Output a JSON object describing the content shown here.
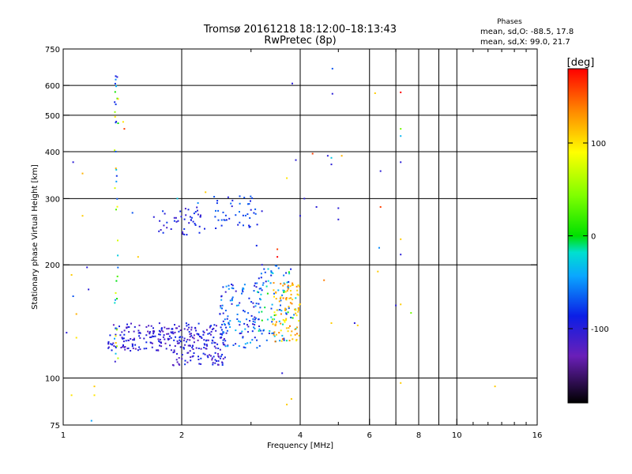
{
  "chart_data": {
    "type": "scatter",
    "title": "Tromsø 20161218 18:12:00–18:13:43",
    "subtitle": "RwPretec (8p)",
    "info": {
      "heading": "Phases",
      "line1": "mean, sd,O: -88.5, 17.8",
      "line2": "mean, sd,X:  99.0, 21.7"
    },
    "xlabel": "Frequency [MHz]",
    "ylabel": "Stationary phase Virtual Height [km]",
    "x_scale": "log",
    "y_scale": "log",
    "xlim": [
      1,
      16
    ],
    "ylim": [
      75,
      750
    ],
    "x_ticks": [
      1,
      2,
      4,
      6,
      8,
      10,
      16
    ],
    "x_tick_labels": [
      "1",
      "2",
      "4",
      "6",
      "8",
      "10",
      "16"
    ],
    "y_ticks": [
      75,
      100,
      200,
      300,
      400,
      500,
      600,
      750
    ],
    "y_tick_labels": [
      "75",
      "100",
      "200",
      "300",
      "400",
      "500",
      "600",
      "750"
    ],
    "grid": true,
    "colorbar": {
      "label": "[deg]",
      "range": [
        -180,
        180
      ],
      "ticks": [
        100,
        0,
        -100
      ],
      "tick_labels": [
        "100",
        "0",
        "-100"
      ]
    },
    "clusters": [
      {
        "x_range": [
          1.3,
          1.9
        ],
        "y_range": [
          118,
          140
        ],
        "phase_range": [
          -130,
          -95
        ],
        "count": 140
      },
      {
        "x_range": [
          1.9,
          2.6
        ],
        "y_range": [
          108,
          140
        ],
        "phase_range": [
          -130,
          -90
        ],
        "count": 180
      },
      {
        "x_range": [
          2.5,
          3.2
        ],
        "y_range": [
          120,
          180
        ],
        "phase_range": [
          -120,
          -40
        ],
        "count": 120
      },
      {
        "x_range": [
          3.1,
          3.9
        ],
        "y_range": [
          125,
          200
        ],
        "phase_range": [
          -110,
          10
        ],
        "count": 90
      },
      {
        "x_range": [
          3.4,
          4.0
        ],
        "y_range": [
          125,
          180
        ],
        "phase_range": [
          90,
          150
        ],
        "count": 90
      },
      {
        "x_range": [
          1.75,
          2.3
        ],
        "y_range": [
          240,
          285
        ],
        "phase_range": [
          -120,
          -90
        ],
        "count": 45
      },
      {
        "x_range": [
          2.4,
          3.2
        ],
        "y_range": [
          250,
          305
        ],
        "phase_range": [
          -110,
          -70
        ],
        "count": 45
      },
      {
        "x_range": [
          1.35,
          1.38
        ],
        "y_range": [
          110,
          650
        ],
        "phase_range": [
          -130,
          120
        ],
        "count": 40
      }
    ],
    "points": [
      {
        "x": 1.02,
        "y": 132,
        "phase": -110
      },
      {
        "x": 1.05,
        "y": 188,
        "phase": 110
      },
      {
        "x": 1.06,
        "y": 165,
        "phase": -80
      },
      {
        "x": 1.08,
        "y": 128,
        "phase": 100
      },
      {
        "x": 1.08,
        "y": 148,
        "phase": 120
      },
      {
        "x": 1.05,
        "y": 90,
        "phase": 100
      },
      {
        "x": 1.06,
        "y": 375,
        "phase": -110
      },
      {
        "x": 1.12,
        "y": 350,
        "phase": 120
      },
      {
        "x": 1.12,
        "y": 270,
        "phase": 110
      },
      {
        "x": 1.2,
        "y": 95,
        "phase": 110
      },
      {
        "x": 1.2,
        "y": 90,
        "phase": 100
      },
      {
        "x": 1.18,
        "y": 77,
        "phase": -50
      },
      {
        "x": 1.15,
        "y": 197,
        "phase": -110
      },
      {
        "x": 1.16,
        "y": 172,
        "phase": -110
      },
      {
        "x": 1.42,
        "y": 480,
        "phase": 100
      },
      {
        "x": 1.43,
        "y": 460,
        "phase": 160
      },
      {
        "x": 1.36,
        "y": 635,
        "phase": -100
      },
      {
        "x": 1.36,
        "y": 622,
        "phase": -60
      },
      {
        "x": 1.36,
        "y": 478,
        "phase": -90
      },
      {
        "x": 1.36,
        "y": 400,
        "phase": -80
      },
      {
        "x": 1.55,
        "y": 210,
        "phase": 110
      },
      {
        "x": 1.5,
        "y": 275,
        "phase": -80
      },
      {
        "x": 1.7,
        "y": 268,
        "phase": -110
      },
      {
        "x": 1.95,
        "y": 300,
        "phase": -30
      },
      {
        "x": 2.3,
        "y": 312,
        "phase": 110
      },
      {
        "x": 2.2,
        "y": 292,
        "phase": -60
      },
      {
        "x": 3.0,
        "y": 280,
        "phase": -110
      },
      {
        "x": 3.1,
        "y": 225,
        "phase": -100
      },
      {
        "x": 3.2,
        "y": 200,
        "phase": -110
      },
      {
        "x": 3.5,
        "y": 210,
        "phase": 180
      },
      {
        "x": 3.5,
        "y": 220,
        "phase": 160
      },
      {
        "x": 3.7,
        "y": 340,
        "phase": 100
      },
      {
        "x": 3.82,
        "y": 607,
        "phase": -110
      },
      {
        "x": 3.9,
        "y": 380,
        "phase": -110
      },
      {
        "x": 4.0,
        "y": 270,
        "phase": -110
      },
      {
        "x": 4.1,
        "y": 300,
        "phase": -110
      },
      {
        "x": 3.95,
        "y": 150,
        "phase": 110
      },
      {
        "x": 3.6,
        "y": 103,
        "phase": -110
      },
      {
        "x": 3.8,
        "y": 88,
        "phase": 110
      },
      {
        "x": 3.7,
        "y": 85,
        "phase": 110
      },
      {
        "x": 4.3,
        "y": 395,
        "phase": 160
      },
      {
        "x": 4.7,
        "y": 390,
        "phase": -110
      },
      {
        "x": 4.8,
        "y": 370,
        "phase": -110
      },
      {
        "x": 4.8,
        "y": 385,
        "phase": -30
      },
      {
        "x": 5.1,
        "y": 390,
        "phase": 120
      },
      {
        "x": 4.83,
        "y": 570,
        "phase": -110
      },
      {
        "x": 4.83,
        "y": 665,
        "phase": -80
      },
      {
        "x": 4.4,
        "y": 285,
        "phase": -110
      },
      {
        "x": 5.0,
        "y": 283,
        "phase": -110
      },
      {
        "x": 5.0,
        "y": 264,
        "phase": -110
      },
      {
        "x": 4.6,
        "y": 182,
        "phase": 140
      },
      {
        "x": 4.8,
        "y": 140,
        "phase": 110
      },
      {
        "x": 5.5,
        "y": 140,
        "phase": -110
      },
      {
        "x": 5.6,
        "y": 138,
        "phase": 110
      },
      {
        "x": 6.2,
        "y": 572,
        "phase": 110
      },
      {
        "x": 6.4,
        "y": 355,
        "phase": -110
      },
      {
        "x": 6.4,
        "y": 285,
        "phase": 160
      },
      {
        "x": 6.3,
        "y": 192,
        "phase": 110
      },
      {
        "x": 6.35,
        "y": 222,
        "phase": -60
      },
      {
        "x": 7.2,
        "y": 575,
        "phase": 180
      },
      {
        "x": 7.2,
        "y": 460,
        "phase": 40
      },
      {
        "x": 7.2,
        "y": 440,
        "phase": -40
      },
      {
        "x": 7.2,
        "y": 375,
        "phase": -110
      },
      {
        "x": 7.2,
        "y": 234,
        "phase": 110
      },
      {
        "x": 7.2,
        "y": 213,
        "phase": -110
      },
      {
        "x": 7.0,
        "y": 156,
        "phase": -110
      },
      {
        "x": 7.2,
        "y": 157,
        "phase": 110
      },
      {
        "x": 7.65,
        "y": 149,
        "phase": 40
      },
      {
        "x": 7.2,
        "y": 97,
        "phase": 110
      },
      {
        "x": 12.5,
        "y": 95,
        "phase": 110
      }
    ]
  }
}
